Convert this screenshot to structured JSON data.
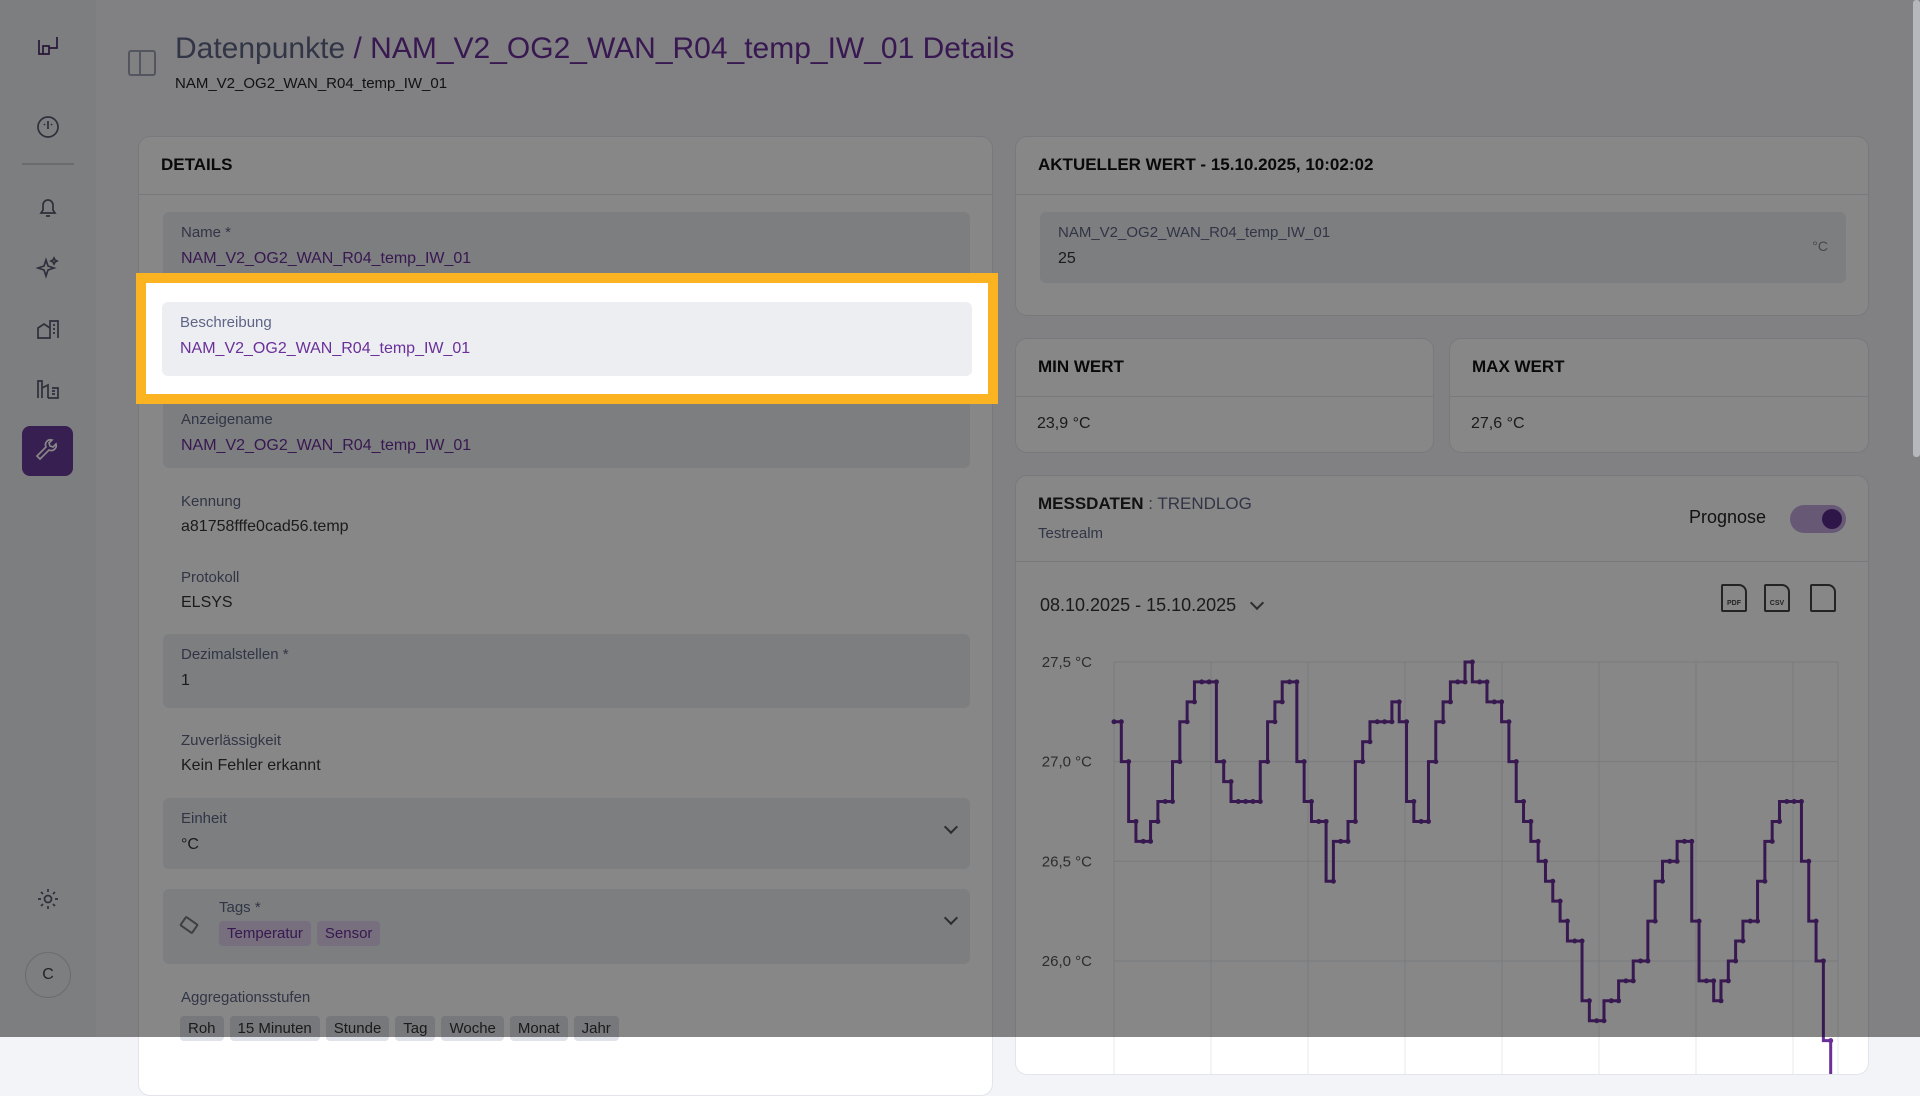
{
  "sidebar": {
    "items": [
      "dashboard-icon",
      "bell-icon",
      "sparkle-icon",
      "building-icon",
      "factory-icon",
      "wrench-icon",
      "gear-icon"
    ],
    "active": "wrench-icon",
    "avatar": "C"
  },
  "header": {
    "breadcrumb_root": "Datenpunkte",
    "separator": "/",
    "title": "NAM_V2_OG2_WAN_R04_temp_IW_01 Details",
    "subtitle": "NAM_V2_OG2_WAN_R04_temp_IW_01"
  },
  "details": {
    "heading": "DETAILS",
    "name": {
      "label": "Name *",
      "value": "NAM_V2_OG2_WAN_R04_temp_IW_01"
    },
    "beschreibung": {
      "label": "Beschreibung",
      "value": "NAM_V2_OG2_WAN_R04_temp_IW_01"
    },
    "anzeigename": {
      "label": "Anzeigename",
      "value": "NAM_V2_OG2_WAN_R04_temp_IW_01"
    },
    "kennung": {
      "label": "Kennung",
      "value": "a81758fffe0cad56.temp"
    },
    "protokoll": {
      "label": "Protokoll",
      "value": "ELSYS"
    },
    "dezimalstellen": {
      "label": "Dezimalstellen *",
      "value": "1"
    },
    "zuverlaessigkeit": {
      "label": "Zuverlässigkeit",
      "value": "Kein Fehler erkannt"
    },
    "einheit": {
      "label": "Einheit",
      "value": "°C"
    },
    "tags": {
      "label": "Tags *",
      "values": [
        "Temperatur",
        "Sensor"
      ]
    },
    "aggregation": {
      "label": "Aggregationsstufen",
      "values": [
        "Roh",
        "15 Minuten",
        "Stunde",
        "Tag",
        "Woche",
        "Monat",
        "Jahr"
      ]
    }
  },
  "current": {
    "heading": "AKTUELLER WERT - 15.10.2025, 10:02:02",
    "label": "NAM_V2_OG2_WAN_R04_temp_IW_01",
    "value": "25",
    "unit": "°C"
  },
  "min": {
    "heading": "MIN WERT",
    "value": "23,9 °C"
  },
  "max": {
    "heading": "MAX WERT",
    "value": "27,6 °C"
  },
  "messdaten": {
    "heading": "MESSDATEN",
    "sep": " : ",
    "source": "TRENDLOG",
    "realm": "Testrealm",
    "prognose_label": "Prognose",
    "prognose_on": true,
    "date_range": "08.10.2025 - 15.10.2025",
    "exports": [
      "PDF",
      "CSV",
      "image"
    ]
  },
  "highlight_color": "#fbb321",
  "accent_color": "#6a2f98",
  "chart_data": {
    "type": "line",
    "step": true,
    "grid": true,
    "x_range": [
      "08.10.2025",
      "15.10.2025"
    ],
    "yticks": [
      "27,5 °C",
      "27,0 °C",
      "26,5 °C",
      "26,0 °C"
    ],
    "ytick_values": [
      27.5,
      27.0,
      26.5,
      26.0
    ],
    "series": [
      {
        "color": "#6a2f98",
        "values": [
          27.2,
          27.2,
          27.0,
          26.7,
          26.6,
          26.6,
          26.7,
          26.8,
          26.8,
          27.0,
          27.2,
          27.3,
          27.4,
          27.4,
          27.4,
          27.0,
          26.9,
          26.8,
          26.8,
          26.8,
          26.8,
          27.0,
          27.2,
          27.3,
          27.4,
          27.4,
          27.0,
          26.8,
          26.7,
          26.7,
          26.4,
          26.6,
          26.6,
          26.7,
          27.0,
          27.1,
          27.2,
          27.2,
          27.2,
          27.3,
          27.2,
          26.8,
          26.7,
          26.7,
          27.0,
          27.2,
          27.3,
          27.4,
          27.4,
          27.5,
          27.4,
          27.4,
          27.3,
          27.3,
          27.2,
          27.0,
          26.8,
          26.7,
          26.6,
          26.5,
          26.4,
          26.3,
          26.2,
          26.1,
          26.1,
          25.8,
          25.7,
          25.7,
          25.8,
          25.8,
          25.9,
          25.9,
          26.0,
          26.0,
          26.2,
          26.4,
          26.5,
          26.5,
          26.6,
          26.6,
          26.2,
          25.9,
          25.9,
          25.8,
          25.9,
          26.0,
          26.1,
          26.2,
          26.2,
          26.4,
          26.6,
          26.7,
          26.8,
          26.8,
          26.8,
          26.5,
          26.2,
          26.0,
          25.6,
          25.2
        ]
      }
    ]
  }
}
